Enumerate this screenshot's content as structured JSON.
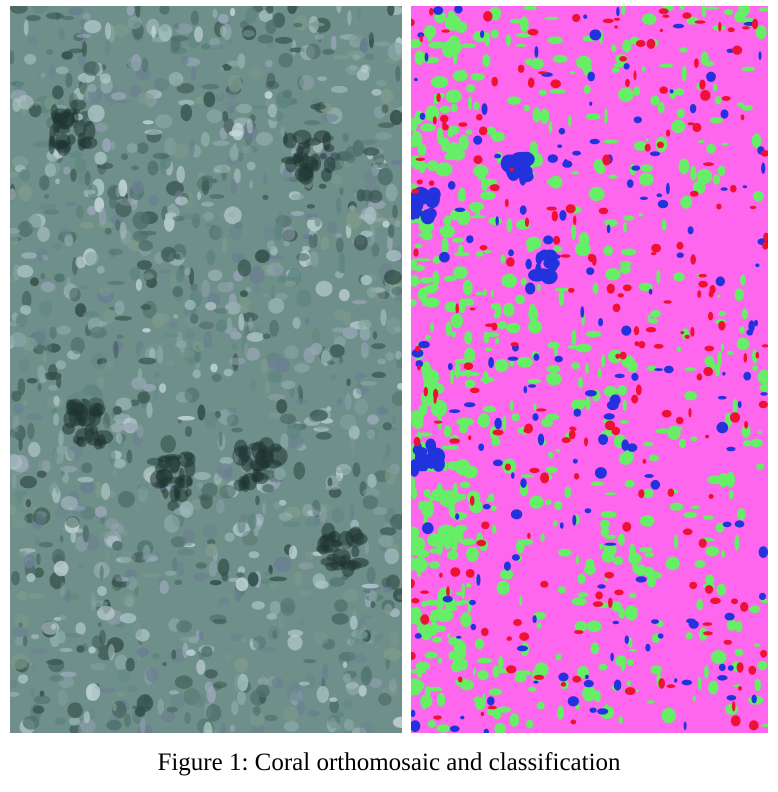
{
  "figure": {
    "caption": "Figure 1: Coral orthomosaic and classification"
  },
  "panels": [
    {
      "name": "orthomosaic",
      "base_color": "#6f8f8a"
    },
    {
      "name": "classification",
      "base_color": "#ff66ee"
    }
  ],
  "classification_colors": {
    "background": "#ff66ee",
    "green": "#66ee66",
    "blue": "#2233dd",
    "red": "#ee1133"
  }
}
